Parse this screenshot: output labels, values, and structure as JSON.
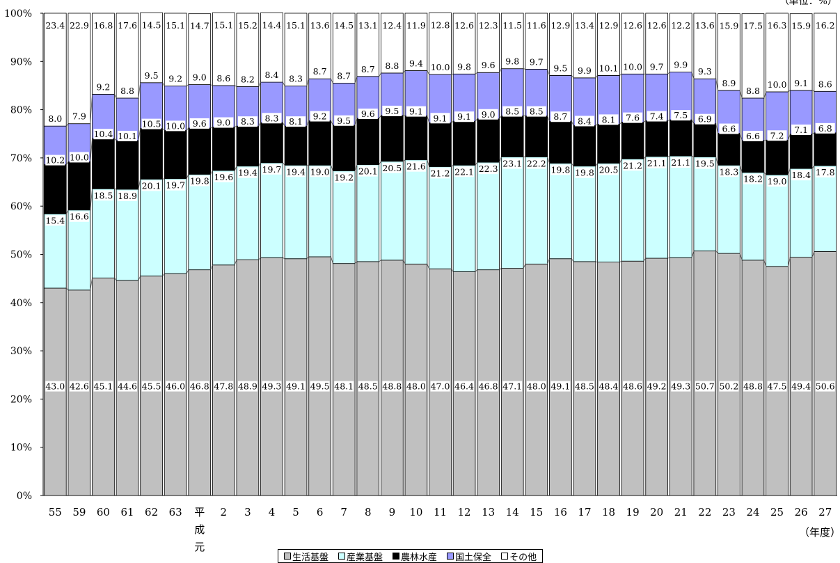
{
  "unit_label": "（単位：%）",
  "x_unit_label": "（年度）",
  "chart_data": {
    "type": "bar",
    "stacked": true,
    "percent_stacked": true,
    "categories": [
      "55",
      "59",
      "60",
      "61",
      "62",
      "63",
      "平成元",
      "2",
      "3",
      "4",
      "5",
      "6",
      "7",
      "8",
      "9",
      "10",
      "11",
      "12",
      "13",
      "14",
      "15",
      "16",
      "17",
      "18",
      "19",
      "20",
      "21",
      "22",
      "23",
      "24",
      "25",
      "26",
      "27"
    ],
    "series": [
      {
        "name": "生活基盤",
        "color": "#c0c0c0",
        "values": [
          43.0,
          42.6,
          45.1,
          44.6,
          45.5,
          46.0,
          46.8,
          47.8,
          48.9,
          49.3,
          49.1,
          49.5,
          48.1,
          48.5,
          48.8,
          48.0,
          47.0,
          46.4,
          46.8,
          47.1,
          48.0,
          49.1,
          48.5,
          48.4,
          48.6,
          49.2,
          49.3,
          50.7,
          50.2,
          48.8,
          47.5,
          49.4,
          50.6
        ]
      },
      {
        "name": "産業基盤",
        "color": "#ccffff",
        "values": [
          15.4,
          16.6,
          18.5,
          18.9,
          20.1,
          19.7,
          19.8,
          19.6,
          19.4,
          19.7,
          19.4,
          19.0,
          19.2,
          20.1,
          20.5,
          21.6,
          21.2,
          22.1,
          22.3,
          23.1,
          22.2,
          19.8,
          19.8,
          20.5,
          21.2,
          21.1,
          21.1,
          19.5,
          18.3,
          18.2,
          19.0,
          18.4,
          17.8
        ]
      },
      {
        "name": "農林水産",
        "color": "#000000",
        "values": [
          10.2,
          10.0,
          10.4,
          10.1,
          10.5,
          10.0,
          9.6,
          9.0,
          8.3,
          8.3,
          8.1,
          9.2,
          9.5,
          9.6,
          9.5,
          9.1,
          9.1,
          9.1,
          9.0,
          8.5,
          8.5,
          8.7,
          8.4,
          8.1,
          7.6,
          7.4,
          7.5,
          6.9,
          6.6,
          6.6,
          7.2,
          7.1,
          6.8
        ]
      },
      {
        "name": "国土保全",
        "color": "#9999ff",
        "values": [
          8.0,
          7.9,
          9.2,
          8.8,
          9.5,
          9.2,
          9.0,
          8.6,
          8.2,
          8.4,
          8.3,
          8.7,
          8.7,
          8.7,
          8.8,
          9.4,
          10.0,
          9.8,
          9.6,
          9.8,
          9.7,
          9.5,
          9.9,
          10.1,
          10.0,
          9.7,
          9.9,
          9.3,
          8.9,
          8.8,
          10.0,
          9.1,
          8.6
        ]
      },
      {
        "name": "その他",
        "color": "#ffffff",
        "values": [
          23.4,
          22.9,
          16.8,
          17.6,
          14.5,
          15.1,
          14.7,
          15.1,
          15.2,
          14.4,
          15.1,
          13.6,
          14.5,
          13.1,
          12.4,
          11.9,
          12.8,
          12.6,
          12.3,
          11.5,
          11.6,
          12.9,
          13.4,
          12.9,
          12.6,
          12.6,
          12.2,
          13.6,
          15.9,
          17.5,
          16.3,
          15.9,
          16.2
        ]
      }
    ],
    "y_ticks": [
      "0%",
      "10%",
      "20%",
      "30%",
      "40%",
      "50%",
      "60%",
      "70%",
      "80%",
      "90%",
      "100%"
    ],
    "ylim": [
      0,
      100
    ],
    "grid": false,
    "legend_position": "bottom"
  }
}
